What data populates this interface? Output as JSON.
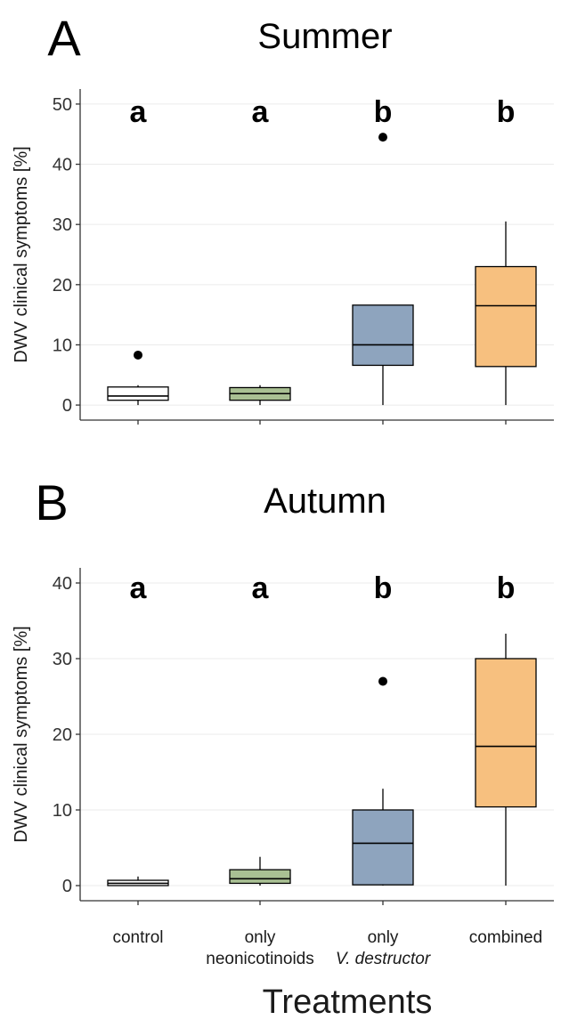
{
  "figure": {
    "x_title": "Treatments",
    "box_stroke": "#000000",
    "grid_color": "#ebebeb"
  },
  "chart_data": [
    {
      "type": "box",
      "panel_label": "A",
      "title": "Summer",
      "ylabel": "DWV clinical symptoms [%]",
      "ylim": [
        -2.5,
        52.5
      ],
      "yticks": [
        0,
        10,
        20,
        30,
        40,
        50
      ],
      "grid": true,
      "categories": [
        {
          "lines": [
            "control"
          ],
          "italic": [
            false
          ]
        },
        {
          "lines": [
            "only",
            "neonicotinoids"
          ],
          "italic": [
            false,
            false
          ]
        },
        {
          "lines": [
            "only",
            "V. destructor"
          ],
          "italic": [
            false,
            true
          ]
        },
        {
          "lines": [
            "combined"
          ],
          "italic": [
            false
          ]
        }
      ],
      "boxes": [
        {
          "min": 0,
          "q1": 0.8,
          "median": 1.5,
          "q3": 3.0,
          "max": 3.3,
          "outliers": [
            8.3
          ],
          "color": "#ffffff",
          "letter": "a"
        },
        {
          "min": 0,
          "q1": 0.8,
          "median": 1.9,
          "q3": 2.9,
          "max": 3.3,
          "outliers": [],
          "color": "#a9c093",
          "letter": "a"
        },
        {
          "min": 0,
          "q1": 6.6,
          "median": 10.0,
          "q3": 16.6,
          "max": 16.6,
          "outliers": [
            44.5
          ],
          "color": "#8ea4be",
          "letter": "b"
        },
        {
          "min": 0,
          "q1": 6.4,
          "median": 16.5,
          "q3": 23.0,
          "max": 30.5,
          "outliers": [],
          "color": "#f7c07f",
          "letter": "b"
        }
      ]
    },
    {
      "type": "box",
      "panel_label": "B",
      "title": "Autumn",
      "ylabel": "DWV clinical symptoms [%]",
      "ylim": [
        -2.0,
        42.0
      ],
      "yticks": [
        0,
        10,
        20,
        30,
        40
      ],
      "grid": true,
      "categories": [
        {
          "lines": [
            "control"
          ],
          "italic": [
            false
          ]
        },
        {
          "lines": [
            "only",
            "neonicotinoids"
          ],
          "italic": [
            false,
            false
          ]
        },
        {
          "lines": [
            "only",
            "V. destructor"
          ],
          "italic": [
            false,
            true
          ]
        },
        {
          "lines": [
            "combined"
          ],
          "italic": [
            false
          ]
        }
      ],
      "boxes": [
        {
          "min": 0,
          "q1": 0.0,
          "median": 0.3,
          "q3": 0.7,
          "max": 1.2,
          "outliers": [],
          "color": "#ffffff",
          "letter": "a"
        },
        {
          "min": 0,
          "q1": 0.3,
          "median": 0.9,
          "q3": 2.1,
          "max": 3.8,
          "outliers": [],
          "color": "#a9c093",
          "letter": "a"
        },
        {
          "min": 0,
          "q1": 0.1,
          "median": 5.6,
          "q3": 10.0,
          "max": 12.8,
          "outliers": [
            27.0
          ],
          "color": "#8ea4be",
          "letter": "b"
        },
        {
          "min": 0,
          "q1": 10.4,
          "median": 18.4,
          "q3": 30.0,
          "max": 33.3,
          "outliers": [],
          "color": "#f7c07f",
          "letter": "b"
        }
      ]
    }
  ]
}
